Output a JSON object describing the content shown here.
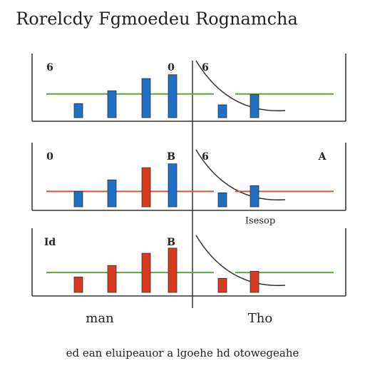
{
  "title": "Rorelcdy Fgmoedeu Rognamcha",
  "footer": "ed ean eluipeauor a lgoehe hd otowegeahe",
  "bottom_labels": [
    "man",
    "Tho"
  ],
  "chart_data": [
    {
      "type": "bar",
      "labels": [
        "6",
        "0",
        "6"
      ],
      "categories": [
        null,
        null,
        null,
        null,
        null,
        null
      ],
      "values": [
        22,
        42,
        61,
        67,
        20,
        36
      ],
      "colors": [
        "#1f6fc4",
        "#1f6fc4",
        "#1f6fc4",
        "#1f6fc4",
        "#1f6fc4",
        "#1f6fc4"
      ],
      "reference_value": 37,
      "reference_color": "#5aa832",
      "ylim": [
        0,
        100
      ]
    },
    {
      "type": "bar",
      "labels": [
        "0",
        "B",
        "6",
        "A"
      ],
      "categories": [
        null,
        null,
        null,
        null,
        null,
        null
      ],
      "values": [
        24,
        42,
        61,
        67,
        22,
        33
      ],
      "colors": [
        "#1f6fc4",
        "#1f6fc4",
        "#d83a1e",
        "#1f6fc4",
        "#1f6fc4",
        "#1f6fc4"
      ],
      "reference_value": 24,
      "reference_color": "#d8523a",
      "ylim": [
        0,
        100
      ],
      "note": "Isesop"
    },
    {
      "type": "bar",
      "labels": [
        "Id",
        "B"
      ],
      "categories": [
        null,
        null,
        null,
        null,
        null,
        null
      ],
      "values": [
        24,
        42,
        61,
        69,
        22,
        33
      ],
      "colors": [
        "#d83a1e",
        "#d83a1e",
        "#d83a1e",
        "#d83a1e",
        "#d83a1e",
        "#d83a1e"
      ],
      "reference_value": 31,
      "reference_color": "#5aa832",
      "ylim": [
        0,
        100
      ]
    }
  ]
}
